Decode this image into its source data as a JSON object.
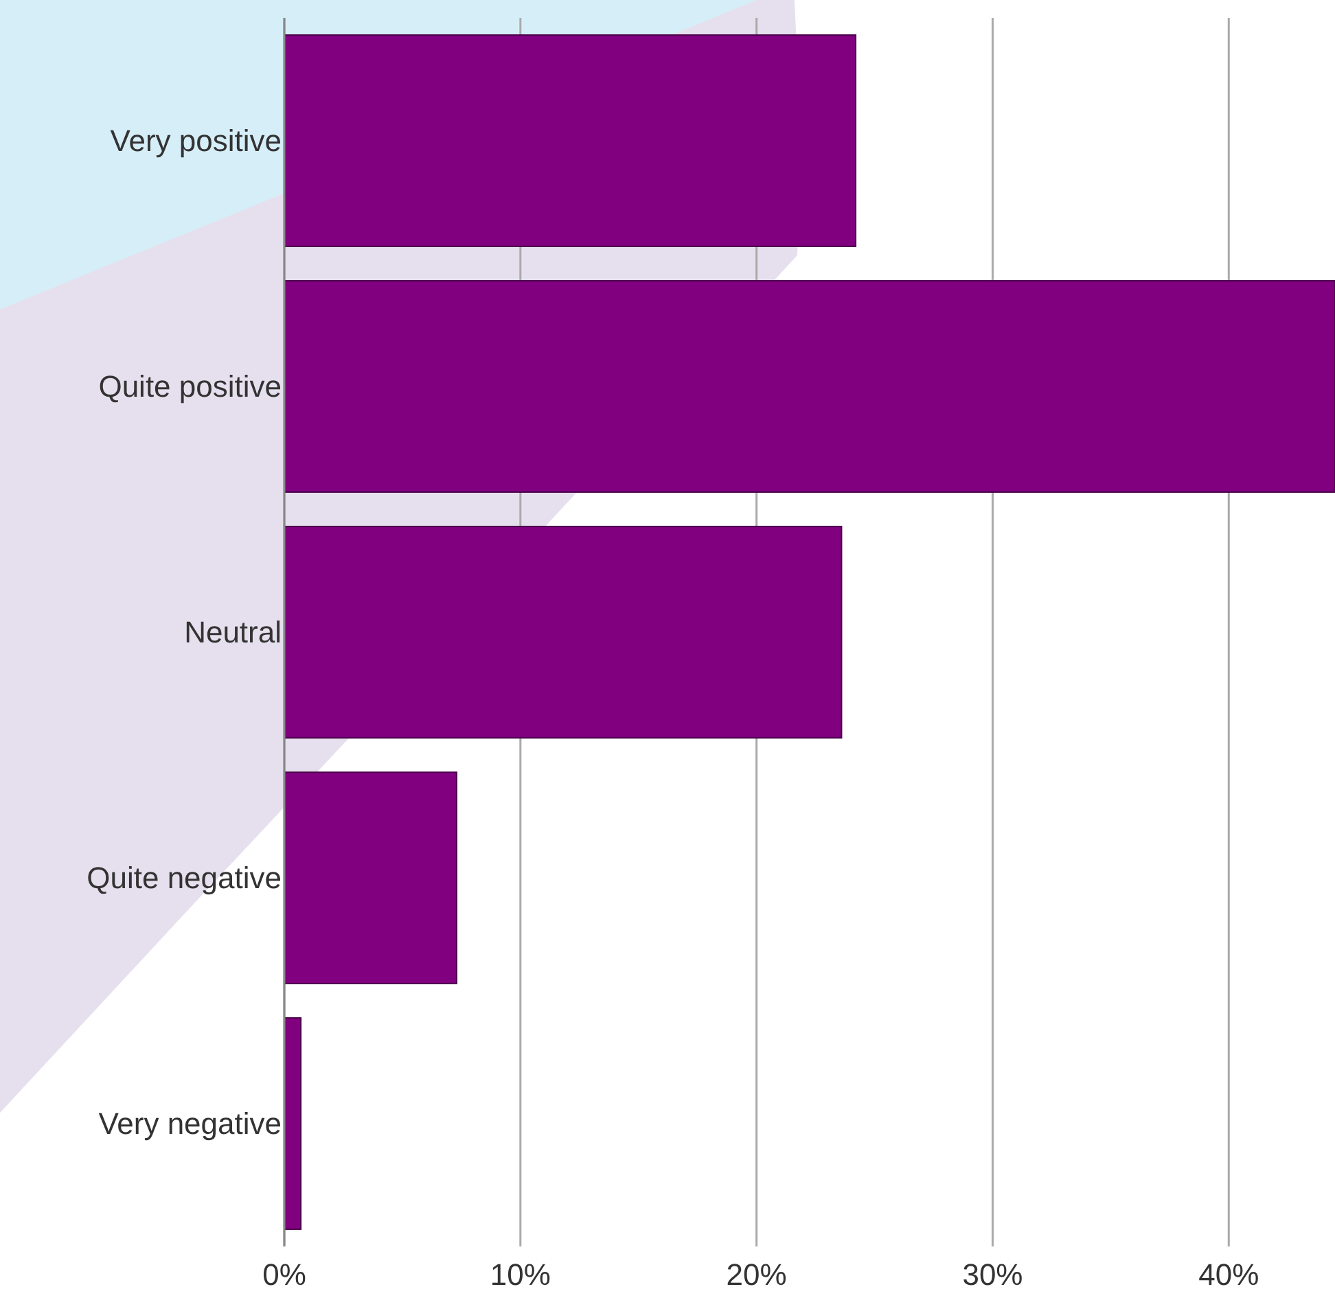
{
  "chart_data": {
    "type": "bar",
    "orientation": "horizontal",
    "categories": [
      "Very positive",
      "Quite positive",
      "Neutral",
      "Quite negative",
      "Very negative"
    ],
    "values": [
      24.2,
      44.5,
      23.6,
      7.3,
      0.7
    ],
    "color": "#800080",
    "xlim": [
      0,
      44.5
    ],
    "xticks": [
      {
        "value": 0,
        "label": "0%"
      },
      {
        "value": 10,
        "label": "10%"
      },
      {
        "value": 20,
        "label": "20%"
      },
      {
        "value": 30,
        "label": "30%"
      },
      {
        "value": 40,
        "label": "40%"
      }
    ],
    "grid": "x"
  }
}
